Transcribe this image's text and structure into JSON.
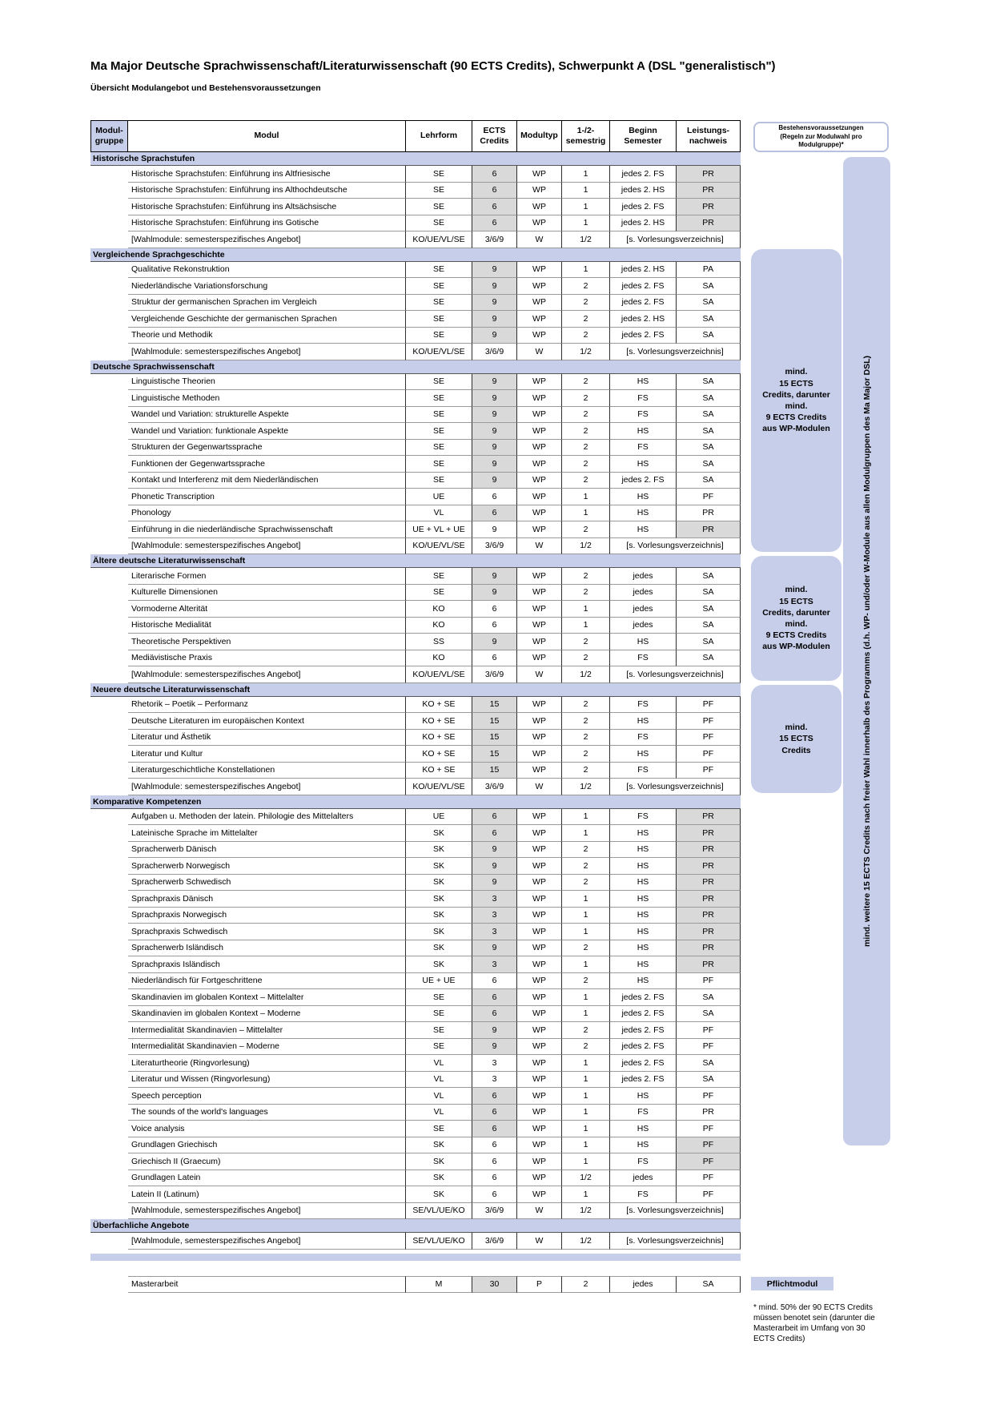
{
  "page": {
    "title": "Ma Major Deutsche Sprachwissenschaft/Literaturwissenschaft (90 ECTS Credits), Schwerpunkt A (DSL \"generalistisch\")",
    "subtitle": "Übersicht Modulangebot und Bestehensvoraussetzungen"
  },
  "colors": {
    "accent_blue": "#c7cee9",
    "shaded_gray": "#d9d9d9"
  },
  "table": {
    "headers": {
      "modulgruppe": "Modul-\ngruppe",
      "modul": "Modul",
      "lehrform": "Lehrform",
      "ects": "ECTS\nCredits",
      "modultyp": "Modultyp",
      "semestrig": "1-/2-\nsemestrig",
      "beginn": "Beginn\nSemester",
      "nachweis": "Leistungs-\nnachweis"
    },
    "sections": [
      {
        "title": "Historische Sprachstufen",
        "rows": [
          {
            "modul": "Historische Sprachstufen: Einführung ins Altfriesische",
            "lehrform": "SE",
            "ects": "6",
            "ects_shaded": true,
            "modultyp": "WP",
            "sem": "1",
            "beginn": "jedes 2. FS",
            "nachweis": "PR",
            "nachweis_shaded": true
          },
          {
            "modul": "Historische Sprachstufen: Einführung ins Althochdeutsche",
            "lehrform": "SE",
            "ects": "6",
            "ects_shaded": true,
            "modultyp": "WP",
            "sem": "1",
            "beginn": "jedes 2. HS",
            "nachweis": "PR",
            "nachweis_shaded": true
          },
          {
            "modul": "Historische Sprachstufen: Einführung ins Altsächsische",
            "lehrform": "SE",
            "ects": "6",
            "ects_shaded": true,
            "modultyp": "WP",
            "sem": "1",
            "beginn": "jedes 2. FS",
            "nachweis": "PR",
            "nachweis_shaded": true
          },
          {
            "modul": "Historische Sprachstufen: Einführung ins Gotische",
            "lehrform": "SE",
            "ects": "6",
            "ects_shaded": true,
            "modultyp": "WP",
            "sem": "1",
            "beginn": "jedes 2. HS",
            "nachweis": "PR",
            "nachweis_shaded": true
          },
          {
            "modul": "[Wahlmodule: semesterspezifisches Angebot]",
            "lehrform": "KO/UE/VL/SE",
            "ects": "3/6/9",
            "modultyp": "W",
            "sem": "1/2",
            "beginn": "[s. Vorlesungsverzeichnis]",
            "wahl": true
          }
        ]
      },
      {
        "title": "Vergleichende Sprachgeschichte",
        "rows": [
          {
            "modul": "Qualitative Rekonstruktion",
            "lehrform": "SE",
            "ects": "9",
            "ects_shaded": true,
            "modultyp": "WP",
            "sem": "1",
            "beginn": "jedes 2. HS",
            "nachweis": "PA"
          },
          {
            "modul": "Niederländische Variationsforschung",
            "lehrform": "SE",
            "ects": "9",
            "ects_shaded": true,
            "modultyp": "WP",
            "sem": "2",
            "beginn": "jedes 2. FS",
            "nachweis": "SA"
          },
          {
            "modul": "Struktur der germanischen Sprachen im Vergleich",
            "lehrform": "SE",
            "ects": "9",
            "ects_shaded": true,
            "modultyp": "WP",
            "sem": "2",
            "beginn": "jedes 2. FS",
            "nachweis": "SA"
          },
          {
            "modul": "Vergleichende Geschichte der germanischen Sprachen",
            "lehrform": "SE",
            "ects": "9",
            "ects_shaded": true,
            "modultyp": "WP",
            "sem": "2",
            "beginn": "jedes 2. HS",
            "nachweis": "SA"
          },
          {
            "modul": "Theorie und Methodik",
            "lehrform": "SE",
            "ects": "9",
            "ects_shaded": true,
            "modultyp": "WP",
            "sem": "2",
            "beginn": "jedes 2. FS",
            "nachweis": "SA"
          },
          {
            "modul": "[Wahlmodule: semesterspezifisches Angebot]",
            "lehrform": "KO/UE/VL/SE",
            "ects": "3/6/9",
            "modultyp": "W",
            "sem": "1/2",
            "beginn": "[s. Vorlesungsverzeichnis]",
            "wahl": true
          }
        ]
      },
      {
        "title": "Deutsche Sprachwissenschaft",
        "rows": [
          {
            "modul": "Linguistische Theorien",
            "lehrform": "SE",
            "ects": "9",
            "ects_shaded": true,
            "modultyp": "WP",
            "sem": "2",
            "beginn": "HS",
            "nachweis": "SA"
          },
          {
            "modul": "Linguistische Methoden",
            "lehrform": "SE",
            "ects": "9",
            "ects_shaded": true,
            "modultyp": "WP",
            "sem": "2",
            "beginn": "FS",
            "nachweis": "SA"
          },
          {
            "modul": "Wandel und Variation: strukturelle Aspekte",
            "lehrform": "SE",
            "ects": "9",
            "ects_shaded": true,
            "modultyp": "WP",
            "sem": "2",
            "beginn": "FS",
            "nachweis": "SA"
          },
          {
            "modul": "Wandel und Variation: funktionale Aspekte",
            "lehrform": "SE",
            "ects": "9",
            "ects_shaded": true,
            "modultyp": "WP",
            "sem": "2",
            "beginn": "HS",
            "nachweis": "SA"
          },
          {
            "modul": "Strukturen der Gegenwartssprache",
            "lehrform": "SE",
            "ects": "9",
            "ects_shaded": true,
            "modultyp": "WP",
            "sem": "2",
            "beginn": "FS",
            "nachweis": "SA"
          },
          {
            "modul": "Funktionen der Gegenwartssprache",
            "lehrform": "SE",
            "ects": "9",
            "ects_shaded": true,
            "modultyp": "WP",
            "sem": "2",
            "beginn": "HS",
            "nachweis": "SA"
          },
          {
            "modul": "Kontakt und Interferenz mit dem Niederländischen",
            "lehrform": "SE",
            "ects": "9",
            "ects_shaded": true,
            "modultyp": "WP",
            "sem": "2",
            "beginn": "jedes 2. FS",
            "nachweis": "SA"
          },
          {
            "modul": "Phonetic Transcription",
            "lehrform": "UE",
            "ects": "6",
            "modultyp": "WP",
            "sem": "1",
            "beginn": "HS",
            "nachweis": "PF"
          },
          {
            "modul": "Phonology",
            "lehrform": "VL",
            "ects": "6",
            "ects_shaded": true,
            "modultyp": "WP",
            "sem": "1",
            "beginn": "HS",
            "nachweis": "PR"
          },
          {
            "modul": "Einführung in die niederländische Sprachwissenschaft",
            "lehrform": "UE + VL + UE",
            "ects": "9",
            "modultyp": "WP",
            "sem": "2",
            "beginn": "HS",
            "nachweis": "PR",
            "nachweis_shaded": true
          },
          {
            "modul": "[Wahlmodule: semesterspezifisches Angebot]",
            "lehrform": "KO/UE/VL/SE",
            "ects": "3/6/9",
            "modultyp": "W",
            "sem": "1/2",
            "beginn": "[s. Vorlesungsverzeichnis]",
            "wahl": true
          }
        ]
      },
      {
        "title": "Ältere deutsche Literaturwissenschaft",
        "rows": [
          {
            "modul": "Literarische Formen",
            "lehrform": "SE",
            "ects": "9",
            "ects_shaded": true,
            "modultyp": "WP",
            "sem": "2",
            "beginn": "jedes",
            "nachweis": "SA"
          },
          {
            "modul": "Kulturelle Dimensionen",
            "lehrform": "SE",
            "ects": "9",
            "ects_shaded": true,
            "modultyp": "WP",
            "sem": "2",
            "beginn": "jedes",
            "nachweis": "SA"
          },
          {
            "modul": "Vormoderne Alterität",
            "lehrform": "KO",
            "ects": "6",
            "modultyp": "WP",
            "sem": "1",
            "beginn": "jedes",
            "nachweis": "SA"
          },
          {
            "modul": "Historische Medialität",
            "lehrform": "KO",
            "ects": "6",
            "modultyp": "WP",
            "sem": "1",
            "beginn": "jedes",
            "nachweis": "SA"
          },
          {
            "modul": "Theoretische Perspektiven",
            "lehrform": "SS",
            "ects": "9",
            "ects_shaded": true,
            "modultyp": "WP",
            "sem": "2",
            "beginn": "HS",
            "nachweis": "SA"
          },
          {
            "modul": "Mediävistische Praxis",
            "lehrform": "KO",
            "ects": "6",
            "modultyp": "WP",
            "sem": "2",
            "beginn": "FS",
            "nachweis": "SA"
          },
          {
            "modul": "[Wahlmodule: semesterspezifisches Angebot]",
            "lehrform": "KO/UE/VL/SE",
            "ects": "3/6/9",
            "modultyp": "W",
            "sem": "1/2",
            "beginn": "[s. Vorlesungsverzeichnis]",
            "wahl": true
          }
        ]
      },
      {
        "title": "Neuere deutsche Literaturwissenschaft",
        "rows": [
          {
            "modul": "Rhetorik – Poetik – Performanz",
            "lehrform": "KO + SE",
            "ects": "15",
            "ects_shaded": true,
            "modultyp": "WP",
            "sem": "2",
            "beginn": "FS",
            "nachweis": "PF"
          },
          {
            "modul": "Deutsche Literaturen im europäischen Kontext",
            "lehrform": "KO + SE",
            "ects": "15",
            "ects_shaded": true,
            "modultyp": "WP",
            "sem": "2",
            "beginn": "HS",
            "nachweis": "PF"
          },
          {
            "modul": "Literatur und Ästhetik",
            "lehrform": "KO + SE",
            "ects": "15",
            "ects_shaded": true,
            "modultyp": "WP",
            "sem": "2",
            "beginn": "FS",
            "nachweis": "PF"
          },
          {
            "modul": "Literatur und Kultur",
            "lehrform": "KO + SE",
            "ects": "15",
            "ects_shaded": true,
            "modultyp": "WP",
            "sem": "2",
            "beginn": "HS",
            "nachweis": "PF"
          },
          {
            "modul": "Literaturgeschichtliche Konstellationen",
            "lehrform": "KO + SE",
            "ects": "15",
            "ects_shaded": true,
            "modultyp": "WP",
            "sem": "2",
            "beginn": "FS",
            "nachweis": "PF"
          },
          {
            "modul": "[Wahlmodule: semesterspezifisches Angebot]",
            "lehrform": "KO/UE/VL/SE",
            "ects": "3/6/9",
            "modultyp": "W",
            "sem": "1/2",
            "beginn": "[s. Vorlesungsverzeichnis]",
            "wahl": true
          }
        ]
      },
      {
        "title": "Komparative Kompetenzen",
        "rows": [
          {
            "modul": "Aufgaben u. Methoden der latein. Philologie des Mittelalters",
            "lehrform": "UE",
            "ects": "6",
            "ects_shaded": true,
            "modultyp": "WP",
            "sem": "1",
            "beginn": "FS",
            "nachweis": "PR",
            "nachweis_shaded": true
          },
          {
            "modul": "Lateinische Sprache im Mittelalter",
            "lehrform": "SK",
            "ects": "6",
            "ects_shaded": true,
            "modultyp": "WP",
            "sem": "1",
            "beginn": "HS",
            "nachweis": "PR",
            "nachweis_shaded": true
          },
          {
            "modul": "Spracherwerb Dänisch",
            "lehrform": "SK",
            "ects": "9",
            "ects_shaded": true,
            "modultyp": "WP",
            "sem": "2",
            "beginn": "HS",
            "nachweis": "PR",
            "nachweis_shaded": true
          },
          {
            "modul": "Spracherwerb Norwegisch",
            "lehrform": "SK",
            "ects": "9",
            "ects_shaded": true,
            "modultyp": "WP",
            "sem": "2",
            "beginn": "HS",
            "nachweis": "PR",
            "nachweis_shaded": true
          },
          {
            "modul": "Spracherwerb Schwedisch",
            "lehrform": "SK",
            "ects": "9",
            "ects_shaded": true,
            "modultyp": "WP",
            "sem": "2",
            "beginn": "HS",
            "nachweis": "PR",
            "nachweis_shaded": true
          },
          {
            "modul": "Sprachpraxis Dänisch",
            "lehrform": "SK",
            "ects": "3",
            "ects_shaded": true,
            "modultyp": "WP",
            "sem": "1",
            "beginn": "HS",
            "nachweis": "PR",
            "nachweis_shaded": true
          },
          {
            "modul": "Sprachpraxis Norwegisch",
            "lehrform": "SK",
            "ects": "3",
            "ects_shaded": true,
            "modultyp": "WP",
            "sem": "1",
            "beginn": "HS",
            "nachweis": "PR",
            "nachweis_shaded": true
          },
          {
            "modul": "Sprachpraxis Schwedisch",
            "lehrform": "SK",
            "ects": "3",
            "ects_shaded": true,
            "modultyp": "WP",
            "sem": "1",
            "beginn": "HS",
            "nachweis": "PR",
            "nachweis_shaded": true
          },
          {
            "modul": "Spracherwerb Isländisch",
            "lehrform": "SK",
            "ects": "9",
            "ects_shaded": true,
            "modultyp": "WP",
            "sem": "2",
            "beginn": "HS",
            "nachweis": "PR",
            "nachweis_shaded": true
          },
          {
            "modul": "Sprachpraxis Isländisch",
            "lehrform": "SK",
            "ects": "3",
            "ects_shaded": true,
            "modultyp": "WP",
            "sem": "1",
            "beginn": "HS",
            "nachweis": "PR",
            "nachweis_shaded": true
          },
          {
            "modul": "Niederländisch für Fortgeschrittene",
            "lehrform": "UE + UE",
            "ects": "6",
            "modultyp": "WP",
            "sem": "2",
            "beginn": "HS",
            "nachweis": "PF"
          },
          {
            "modul": "Skandinavien im globalen Kontext – Mittelalter",
            "lehrform": "SE",
            "ects": "6",
            "ects_shaded": true,
            "modultyp": "WP",
            "sem": "1",
            "beginn": "jedes 2. FS",
            "nachweis": "SA"
          },
          {
            "modul": "Skandinavien im globalen Kontext – Moderne",
            "lehrform": "SE",
            "ects": "6",
            "ects_shaded": true,
            "modultyp": "WP",
            "sem": "1",
            "beginn": "jedes 2. FS",
            "nachweis": "SA"
          },
          {
            "modul": "Intermedialität Skandinavien – Mittelalter",
            "lehrform": "SE",
            "ects": "9",
            "ects_shaded": true,
            "modultyp": "WP",
            "sem": "2",
            "beginn": "jedes 2. FS",
            "nachweis": "PF"
          },
          {
            "modul": "Intermedialität Skandinavien – Moderne",
            "lehrform": "SE",
            "ects": "9",
            "ects_shaded": true,
            "modultyp": "WP",
            "sem": "2",
            "beginn": "jedes 2. FS",
            "nachweis": "PF"
          },
          {
            "modul": "Literaturtheorie (Ringvorlesung)",
            "lehrform": "VL",
            "ects": "3",
            "modultyp": "WP",
            "sem": "1",
            "beginn": "jedes 2. FS",
            "nachweis": "SA"
          },
          {
            "modul": "Literatur und Wissen (Ringvorlesung)",
            "lehrform": "VL",
            "ects": "3",
            "modultyp": "WP",
            "sem": "1",
            "beginn": "jedes 2. FS",
            "nachweis": "SA"
          },
          {
            "modul": "Speech perception",
            "lehrform": "VL",
            "ects": "6",
            "ects_shaded": true,
            "modultyp": "WP",
            "sem": "1",
            "beginn": "HS",
            "nachweis": "PF"
          },
          {
            "modul": "The sounds of the world's languages",
            "lehrform": "VL",
            "ects": "6",
            "ects_shaded": true,
            "modultyp": "WP",
            "sem": "1",
            "beginn": "FS",
            "nachweis": "PR"
          },
          {
            "modul": "Voice analysis",
            "lehrform": "SE",
            "ects": "6",
            "ects_shaded": true,
            "modultyp": "WP",
            "sem": "1",
            "beginn": "HS",
            "nachweis": "PF"
          },
          {
            "modul": "Grundlagen Griechisch",
            "lehrform": "SK",
            "ects": "6",
            "modultyp": "WP",
            "sem": "1",
            "beginn": "HS",
            "nachweis": "PF",
            "nachweis_shaded": true
          },
          {
            "modul": "Griechisch II (Graecum)",
            "lehrform": "SK",
            "ects": "6",
            "modultyp": "WP",
            "sem": "1",
            "beginn": "FS",
            "nachweis": "PF",
            "nachweis_shaded": true
          },
          {
            "modul": "Grundlagen Latein",
            "lehrform": "SK",
            "ects": "6",
            "modultyp": "WP",
            "sem": "1/2",
            "beginn": "jedes",
            "nachweis": "PF"
          },
          {
            "modul": "Latein II (Latinum)",
            "lehrform": "SK",
            "ects": "6",
            "modultyp": "WP",
            "sem": "1",
            "beginn": "FS",
            "nachweis": "PF"
          },
          {
            "modul": "[Wahlmodule, semesterspezifisches Angebot]",
            "lehrform": "SE/VL/UE/KO",
            "ects": "3/6/9",
            "modultyp": "W",
            "sem": "1/2",
            "beginn": "[s. Vorlesungsverzeichnis]",
            "wahl": true
          }
        ]
      },
      {
        "title": "Überfachliche Angebote",
        "rows": [
          {
            "modul": "[Wahlmodule, semesterspezifisches Angebot]",
            "lehrform": "SE/VL/UE/KO",
            "ects": "3/6/9",
            "modultyp": "W",
            "sem": "1/2",
            "beginn": "[s. Vorlesungsverzeichnis]",
            "wahl": true
          }
        ]
      }
    ],
    "masterarbeit": {
      "modul": "Masterarbeit",
      "lehrform": "M",
      "ects": "30",
      "ects_shaded": true,
      "modultyp": "P",
      "sem": "2",
      "beginn": "jedes",
      "nachweis": "SA"
    }
  },
  "notes": {
    "rules_header": "Bestehensvoraussetzungen\n(Regeln zur Modulwahl pro\nModulgruppe)*",
    "rule_boxes": [
      {
        "text": "mind.\n15 ECTS\nCredits, darunter\nmind.\n9 ECTS Credits\naus WP-Modulen"
      },
      {
        "text": "mind.\n15 ECTS\nCredits, darunter\nmind.\n9 ECTS Credits\naus WP-Modulen"
      },
      {
        "text": "mind.\n15 ECTS\nCredits"
      }
    ],
    "free_choice_bar": "mind. weitere 15 ECTS Credits nach freier Wahl innerhalb des Programms (d.h. WP- und/oder W-Module aus allen Modulgruppen des Ma Major DSL)",
    "pflichtmodul_label": "Pflichtmodul",
    "footnote": "* mind. 50% der 90 ECTS Credits\nmüssen benotet sein (darunter die\nMasterarbeit im Umfang von 30\nECTS Credits)"
  }
}
